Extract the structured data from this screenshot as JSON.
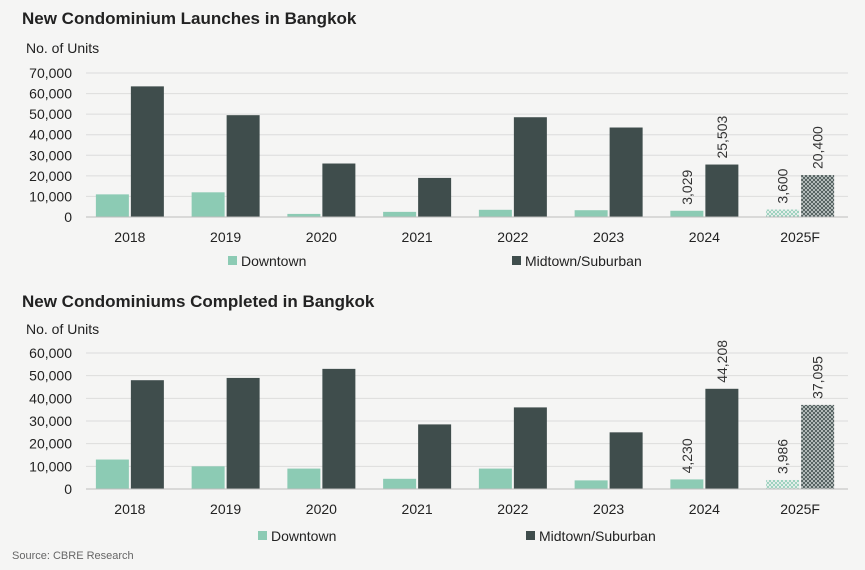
{
  "colors": {
    "downtown": "#8ccbb4",
    "midtown": "#3f4d4c",
    "grid": "#dcdcdc",
    "background": "#f5f5f4"
  },
  "source": "Source: CBRE Research",
  "chart_data": [
    {
      "type": "bar",
      "title": "New Condominium Launches in Bangkok",
      "ylabel": "No. of Units",
      "xlabel": "",
      "categories": [
        "2018",
        "2019",
        "2020",
        "2021",
        "2022",
        "2023",
        "2024",
        "2025F"
      ],
      "ylim": [
        0,
        70000
      ],
      "yticks": [
        0,
        10000,
        20000,
        30000,
        40000,
        50000,
        60000,
        70000
      ],
      "ytick_labels": [
        "0",
        "10,000",
        "20,000",
        "30,000",
        "40,000",
        "50,000",
        "60,000",
        "70,000"
      ],
      "grid": true,
      "legend_position": "bottom",
      "forecast_pattern_categories": [
        "2025F"
      ],
      "series": [
        {
          "name": "Downtown",
          "values": [
            11000,
            12000,
            1500,
            2500,
            3500,
            3300,
            3029,
            3600
          ]
        },
        {
          "name": "Midtown/Suburban",
          "values": [
            63500,
            49500,
            26000,
            19000,
            48500,
            43500,
            25503,
            20400
          ]
        }
      ],
      "data_labels": [
        {
          "category": "2024",
          "series": 0,
          "text": "3,029"
        },
        {
          "category": "2024",
          "series": 1,
          "text": "25,503"
        },
        {
          "category": "2025F",
          "series": 0,
          "text": "3,600"
        },
        {
          "category": "2025F",
          "series": 1,
          "text": "20,400"
        }
      ]
    },
    {
      "type": "bar",
      "title": "New Condominiums Completed in Bangkok",
      "ylabel": "No. of Units",
      "xlabel": "",
      "categories": [
        "2018",
        "2019",
        "2020",
        "2021",
        "2022",
        "2023",
        "2024",
        "2025F"
      ],
      "ylim": [
        0,
        60000
      ],
      "yticks": [
        0,
        10000,
        20000,
        30000,
        40000,
        50000,
        60000
      ],
      "ytick_labels": [
        "0",
        "10,000",
        "20,000",
        "30,000",
        "40,000",
        "50,000",
        "60,000"
      ],
      "grid": true,
      "legend_position": "bottom",
      "forecast_pattern_categories": [
        "2025F"
      ],
      "series": [
        {
          "name": "Downtown",
          "values": [
            13000,
            10000,
            9000,
            4500,
            9000,
            3800,
            4230,
            3986
          ]
        },
        {
          "name": "Midtown/Suburban",
          "values": [
            48000,
            49000,
            53000,
            28500,
            36000,
            25000,
            44208,
            37095
          ]
        }
      ],
      "data_labels": [
        {
          "category": "2024",
          "series": 0,
          "text": "4,230"
        },
        {
          "category": "2024",
          "series": 1,
          "text": "44,208"
        },
        {
          "category": "2025F",
          "series": 0,
          "text": "3,986"
        },
        {
          "category": "2025F",
          "series": 1,
          "text": "37,095"
        }
      ]
    }
  ]
}
